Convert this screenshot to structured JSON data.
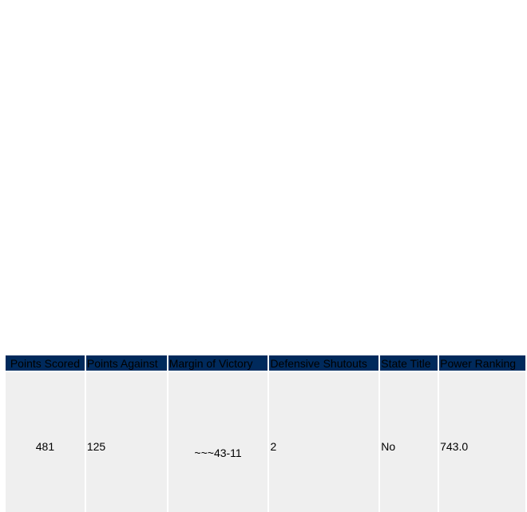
{
  "table": {
    "headers": [
      "Points Scored",
      "Points Against",
      "Margin of Victory",
      "Defensive Shutouts",
      "State Title",
      "Power Ranking"
    ],
    "row": {
      "points_scored": "481",
      "points_against": "125",
      "margin_of_victory": "~~~43-11",
      "defensive_shutouts": "2",
      "state_title": "No",
      "power_ranking": "743.0"
    }
  }
}
